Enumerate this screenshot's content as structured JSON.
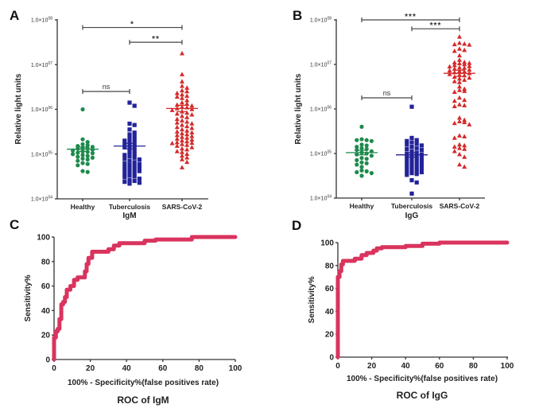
{
  "chart_data": [
    {
      "panel": "A",
      "type": "scatter",
      "title": "",
      "xlabel": "IgM",
      "ylabel": "Relative light units",
      "yscale": "log",
      "ylim": [
        10000,
        100000000
      ],
      "yticks": [
        "1.0x10^04",
        "1.0x10^05",
        "1.0x10^06",
        "1.0x10^07",
        "1.0x10^08"
      ],
      "categories": [
        "Healthy",
        "Tuberculosis",
        "SARS-CoV-2"
      ],
      "colors": [
        "#1e8a4c",
        "#22239a",
        "#d42a2a"
      ],
      "markers": [
        "circle",
        "square",
        "triangle"
      ],
      "means_log10": [
        5.11,
        5.18,
        6.02
      ],
      "sem_log10": [
        0.05,
        0.06,
        0.07
      ],
      "points_log10": [
        [
          6.0,
          5.33,
          5.27,
          5.22,
          5.2,
          5.18,
          5.16,
          5.14,
          5.13,
          5.12,
          5.1,
          5.08,
          5.06,
          5.05,
          5.03,
          5.02,
          5.0,
          4.98,
          4.96,
          4.94,
          4.92,
          4.9,
          4.88,
          4.85,
          4.8,
          4.78,
          4.75,
          4.62,
          4.6
        ],
        [
          6.15,
          6.08,
          5.68,
          5.65,
          5.55,
          5.48,
          5.44,
          5.4,
          5.36,
          5.33,
          5.3,
          5.28,
          5.25,
          5.22,
          5.2,
          5.17,
          5.15,
          5.12,
          5.08,
          5.04,
          5.0,
          4.98,
          4.95,
          4.92,
          4.9,
          4.88,
          4.85,
          4.82,
          4.8,
          4.78,
          4.76,
          4.74,
          4.72,
          4.7,
          4.68,
          4.66,
          4.64,
          4.62,
          4.6,
          4.58,
          4.55,
          4.52,
          4.5,
          4.48,
          4.45,
          4.42,
          4.4,
          4.38,
          4.36,
          4.34
        ],
        [
          7.25,
          6.78,
          6.62,
          6.52,
          6.48,
          6.42,
          6.4,
          6.36,
          6.33,
          6.3,
          6.28,
          6.25,
          6.2,
          6.15,
          6.12,
          6.1,
          6.08,
          6.05,
          6.04,
          6.02,
          6.0,
          5.98,
          5.95,
          5.92,
          5.9,
          5.88,
          5.85,
          5.82,
          5.78,
          5.75,
          5.72,
          5.7,
          5.68,
          5.65,
          5.62,
          5.6,
          5.58,
          5.55,
          5.52,
          5.5,
          5.48,
          5.46,
          5.44,
          5.42,
          5.4,
          5.38,
          5.36,
          5.34,
          5.32,
          5.3,
          5.28,
          5.26,
          5.25,
          5.24,
          5.22,
          5.2,
          5.18,
          5.15,
          5.12,
          5.1,
          5.06,
          5.04,
          5.0,
          4.96,
          4.92,
          4.88,
          4.82,
          4.7
        ]
      ],
      "significance": [
        {
          "from": "Healthy",
          "to": "Tuberculosis",
          "label": "ns",
          "y_log10": 6.4
        },
        {
          "from": "Tuberculosis",
          "to": "SARS-CoV-2",
          "label": "**",
          "y_log10": 7.5
        },
        {
          "from": "Healthy",
          "to": "SARS-CoV-2",
          "label": "*",
          "y_log10": 7.83
        }
      ]
    },
    {
      "panel": "B",
      "type": "scatter",
      "title": "",
      "xlabel": "IgG",
      "ylabel": "Relative light units",
      "yscale": "log",
      "ylim": [
        10000,
        100000000
      ],
      "yticks": [
        "1.0x10^04",
        "1.0x10^05",
        "1.0x10^06",
        "1.0x10^07",
        "1.0x10^08"
      ],
      "categories": [
        "Healthy",
        "Tuberculosis",
        "SARS-CoV-2"
      ],
      "colors": [
        "#1e8a4c",
        "#22239a",
        "#d42a2a"
      ],
      "markers": [
        "circle",
        "square",
        "triangle"
      ],
      "means_log10": [
        5.02,
        4.97,
        6.8
      ],
      "sem_log10": [
        0.05,
        0.05,
        0.07
      ],
      "points_log10": [
        [
          5.6,
          5.32,
          5.3,
          5.3,
          5.28,
          5.2,
          5.18,
          5.15,
          5.12,
          5.1,
          5.08,
          5.05,
          5.02,
          5.0,
          4.98,
          4.95,
          4.9,
          4.88,
          4.85,
          4.8,
          4.78,
          4.75,
          4.7,
          4.62,
          4.6,
          4.58,
          4.56,
          4.5
        ],
        [
          6.05,
          5.35,
          5.3,
          5.28,
          5.25,
          5.22,
          5.2,
          5.18,
          5.15,
          5.12,
          5.1,
          5.08,
          5.05,
          5.02,
          5.0,
          4.98,
          4.96,
          4.94,
          4.92,
          4.9,
          4.88,
          4.86,
          4.84,
          4.82,
          4.8,
          4.78,
          4.76,
          4.74,
          4.72,
          4.7,
          4.68,
          4.66,
          4.64,
          4.62,
          4.6,
          4.58,
          4.56,
          4.54,
          4.52,
          4.4,
          4.35,
          4.1
        ],
        [
          7.62,
          7.48,
          7.46,
          7.45,
          7.44,
          7.35,
          7.32,
          7.3,
          7.2,
          7.1,
          7.05,
          7.04,
          7.03,
          7.02,
          7.0,
          6.98,
          6.96,
          6.95,
          6.93,
          6.92,
          6.9,
          6.88,
          6.86,
          6.85,
          6.84,
          6.82,
          6.8,
          6.78,
          6.76,
          6.75,
          6.72,
          6.7,
          6.68,
          6.65,
          6.62,
          6.6,
          6.5,
          6.45,
          6.42,
          6.4,
          6.38,
          6.25,
          6.2,
          6.18,
          6.1,
          6.08,
          6.06,
          5.8,
          5.75,
          5.72,
          5.7,
          5.68,
          5.65,
          5.4,
          5.38,
          5.35,
          5.2,
          5.18,
          5.15,
          5.12,
          5.1,
          5.05,
          4.98,
          4.92,
          4.75,
          4.7
        ]
      ],
      "significance": [
        {
          "from": "Healthy",
          "to": "Tuberculosis",
          "label": "ns",
          "y_log10": 6.25
        },
        {
          "from": "Tuberculosis",
          "to": "SARS-CoV-2",
          "label": "***",
          "y_log10": 7.8
        },
        {
          "from": "Healthy",
          "to": "SARS-CoV-2",
          "label": "***",
          "y_log10": 8.0
        }
      ]
    },
    {
      "panel": "C",
      "type": "line",
      "title": "ROC of IgM",
      "xlabel": "100% - Specificity%(false positives rate)",
      "ylabel": "Sensitivity%",
      "xlim": [
        0,
        100
      ],
      "ylim": [
        0,
        100
      ],
      "xticks": [
        0,
        20,
        40,
        60,
        80,
        100
      ],
      "yticks": [
        0,
        20,
        40,
        60,
        80,
        100
      ],
      "color": "#d9345e",
      "x": [
        0,
        0,
        1,
        1,
        2,
        2,
        3,
        3,
        4,
        4,
        5,
        5,
        6,
        6,
        7,
        7,
        9,
        9,
        11,
        11,
        13,
        13,
        17,
        17,
        18,
        18,
        19,
        19,
        21,
        21,
        30,
        30,
        33,
        33,
        36,
        36,
        50,
        50,
        56,
        56,
        76,
        76,
        100
      ],
      "y": [
        0,
        18,
        18,
        23,
        23,
        25,
        25,
        33,
        33,
        45,
        45,
        47,
        47,
        51,
        51,
        57,
        57,
        60,
        60,
        65,
        65,
        67,
        67,
        72,
        72,
        78,
        78,
        83,
        83,
        88,
        88,
        90,
        90,
        93,
        93,
        95,
        95,
        97,
        97,
        98,
        98,
        100,
        100
      ]
    },
    {
      "panel": "D",
      "type": "line",
      "title": "ROC of IgG",
      "xlabel": "100% - Specificity%(false positives rate)",
      "ylabel": "Sensitivity%",
      "xlim": [
        0,
        100
      ],
      "ylim": [
        0,
        100
      ],
      "xticks": [
        0,
        20,
        40,
        60,
        80,
        100
      ],
      "yticks": [
        0,
        20,
        40,
        60,
        80,
        100
      ],
      "color": "#d9345e",
      "x": [
        0,
        0,
        1,
        1,
        2,
        2,
        3,
        3,
        10,
        10,
        14,
        14,
        17,
        17,
        21,
        21,
        23,
        23,
        26,
        26,
        40,
        40,
        50,
        50,
        60,
        60,
        100
      ],
      "y": [
        0,
        70,
        70,
        75,
        75,
        81,
        81,
        84,
        84,
        86,
        86,
        89,
        89,
        91,
        91,
        93,
        93,
        95,
        95,
        96,
        96,
        97,
        97,
        99,
        99,
        100,
        100
      ]
    }
  ],
  "labels": {
    "panel_a": "A",
    "panel_b": "B",
    "panel_c": "C",
    "panel_d": "D",
    "ytick_prefix": "1.0×10",
    "ytick_exps": [
      "04",
      "05",
      "06",
      "07",
      "08"
    ]
  }
}
